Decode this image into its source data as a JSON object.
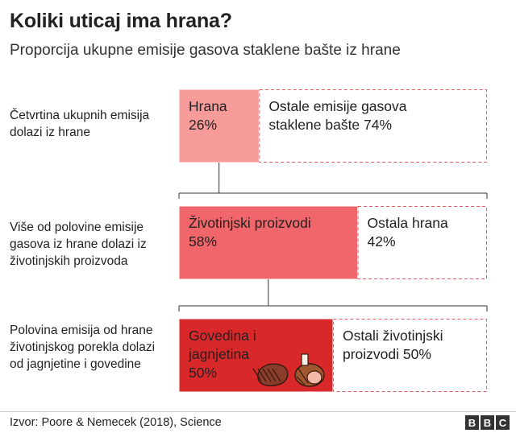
{
  "header": {
    "title": "Koliki uticaj ima hrana?",
    "subtitle": "Proporcija ukupne emisije gasova staklene bašte iz hrane"
  },
  "footer": {
    "source": "Izvor: Poore & Nemecek (2018), Science",
    "logo_letters": [
      "B",
      "B",
      "C"
    ]
  },
  "chart_data": {
    "type": "bar",
    "title": "Koliki uticaj ima hrana?",
    "subtitle": "Proporcija ukupne emisije gasova staklene bašte iz hrane",
    "rows": [
      {
        "description": "Četvrtina ukupnih emisija dolazi iz hrane",
        "segments": [
          {
            "label_lines": [
              "Hrana",
              "26%"
            ],
            "value": 26,
            "color": "#f79a9a"
          },
          {
            "label_lines": [
              "Ostale emisije gasova",
              "staklene bašte 74%"
            ],
            "value": 74,
            "color": "none"
          }
        ]
      },
      {
        "description": "Više od polovine emisije gasova iz hrane dolazi iz životinjskih proizvoda",
        "segments": [
          {
            "label_lines": [
              "Životinjski proizvodi",
              "58%"
            ],
            "value": 58,
            "color": "#f0666a"
          },
          {
            "label_lines": [
              "Ostala hrana",
              "42%"
            ],
            "value": 42,
            "color": "none"
          }
        ]
      },
      {
        "description": "Polovina emisija od hrane životinjskog porekla dolazi od jagnjetine i govedine",
        "segments": [
          {
            "label_lines": [
              "Govedina i",
              "jagnjetina",
              "50%"
            ],
            "value": 50,
            "color": "#d9282a"
          },
          {
            "label_lines": [
              "Ostali životinjski",
              "proizvodi 50%"
            ],
            "value": 50,
            "color": "none"
          }
        ],
        "icons": [
          "steak-icon",
          "ham-icon"
        ]
      }
    ]
  }
}
